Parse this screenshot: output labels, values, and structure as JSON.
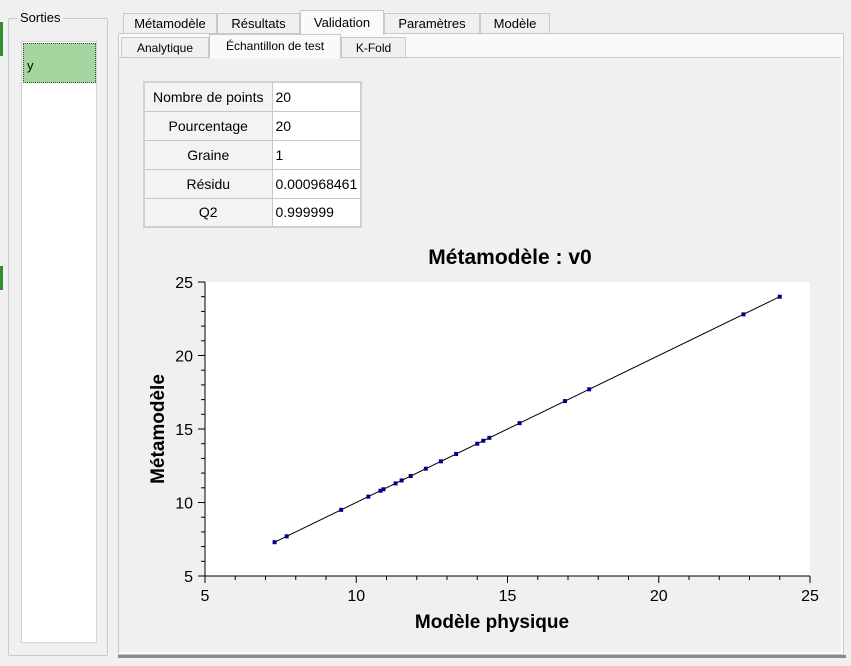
{
  "sidebar": {
    "group_title": "Sorties",
    "outputs": [
      {
        "label": "y"
      }
    ]
  },
  "tabs": [
    {
      "label": "Métamodèle"
    },
    {
      "label": "Résultats"
    },
    {
      "label": "Validation"
    },
    {
      "label": "Paramètres"
    },
    {
      "label": "Modèle"
    }
  ],
  "active_tab": "Validation",
  "subtabs": [
    {
      "label": "Analytique"
    },
    {
      "label": "Échantillon de test"
    },
    {
      "label": "K-Fold"
    }
  ],
  "active_subtab": "Échantillon de test",
  "stats": [
    {
      "label": "Nombre de points",
      "value": "20"
    },
    {
      "label": "Pourcentage",
      "value": "20"
    },
    {
      "label": "Graine",
      "value": "1"
    },
    {
      "label": "Résidu",
      "value": "0.000968461"
    },
    {
      "label": "Q2",
      "value": "0.999999"
    }
  ],
  "chart_data": {
    "type": "scatter",
    "title": "Métamodèle : v0",
    "xlabel": "Modèle physique",
    "ylabel": "Métamodèle",
    "xlim": [
      5,
      25
    ],
    "ylim": [
      5,
      25
    ],
    "xticks": [
      "5",
      "10",
      "15",
      "20",
      "25"
    ],
    "yticks": [
      "5",
      "10",
      "15",
      "20",
      "25"
    ],
    "grid": false,
    "series": [
      {
        "color": "#00008b",
        "x": [
          7.3,
          7.7,
          9.5,
          10.4,
          10.8,
          10.9,
          11.3,
          11.5,
          11.8,
          12.3,
          12.8,
          13.3,
          14.0,
          14.2,
          14.4,
          15.4,
          16.9,
          17.7,
          22.8,
          24.0
        ],
        "y": [
          7.3,
          7.7,
          9.5,
          10.4,
          10.8,
          10.9,
          11.3,
          11.5,
          11.8,
          12.3,
          12.8,
          13.3,
          14.0,
          14.2,
          14.4,
          15.4,
          16.9,
          17.7,
          22.8,
          24.0
        ]
      }
    ],
    "reference_line": {
      "from": 7.3,
      "to": 24.0
    }
  }
}
